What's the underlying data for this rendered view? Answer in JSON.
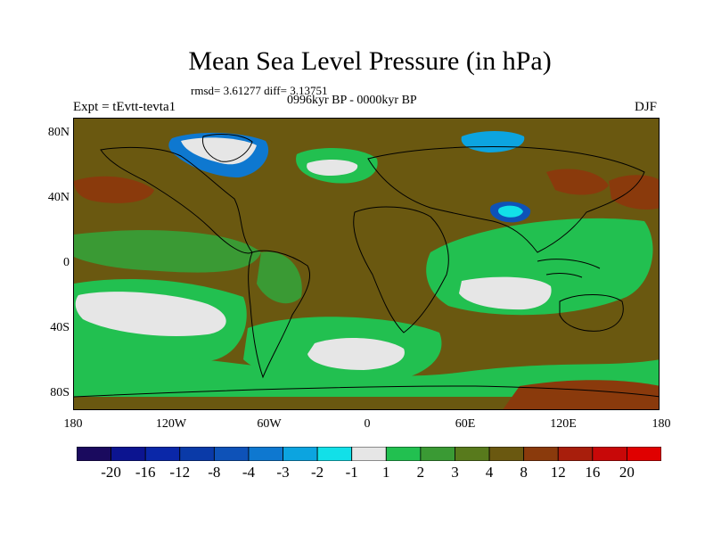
{
  "title": "Mean Sea Level Pressure (in hPa)",
  "stats": "rmsd= 3.61277 diff= 3.13751",
  "period": "0996kyr BP - 0000kyr BP",
  "experiment": "Expt = tEvtt-tevta1",
  "season": "DJF",
  "lat_labels": [
    "80N",
    "40N",
    "0",
    "40S",
    "80S"
  ],
  "lon_labels": [
    "180",
    "120W",
    "60W",
    "0",
    "60E",
    "120E",
    "180"
  ],
  "colorbar": {
    "labels": [
      "-20",
      "-16",
      "-12",
      "-8",
      "-4",
      "-3",
      "-2",
      "-1",
      "1",
      "2",
      "3",
      "4",
      "8",
      "12",
      "16",
      "20"
    ],
    "colors": [
      "#1a0a5e",
      "#0c1490",
      "#0a27a8",
      "#0a3aa8",
      "#0e52b8",
      "#0e78d0",
      "#0ca4e0",
      "#12e0e8",
      "#e6e6e6",
      "#22c050",
      "#3a9a34",
      "#587a1c",
      "#6a5810",
      "#8a3a0c",
      "#a81e0c",
      "#c80808",
      "#e00000"
    ]
  },
  "map": {
    "background_color": "#6a5810",
    "regions": [
      {
        "name": "southeast-pacific-low-anomaly",
        "color": "#22c050"
      },
      {
        "name": "south-atlantic-low-anomaly",
        "color": "#22c050"
      },
      {
        "name": "indian-ocean-low-anomaly",
        "color": "#22c050"
      },
      {
        "name": "southern-ocean-band",
        "color": "#22c050"
      },
      {
        "name": "tibet-high-anomaly",
        "color": "#0e52b8"
      },
      {
        "name": "greenland-high-anomaly",
        "color": "#0e78d0"
      },
      {
        "name": "scandinavia-high-anomaly",
        "color": "#0ca4e0"
      }
    ]
  }
}
